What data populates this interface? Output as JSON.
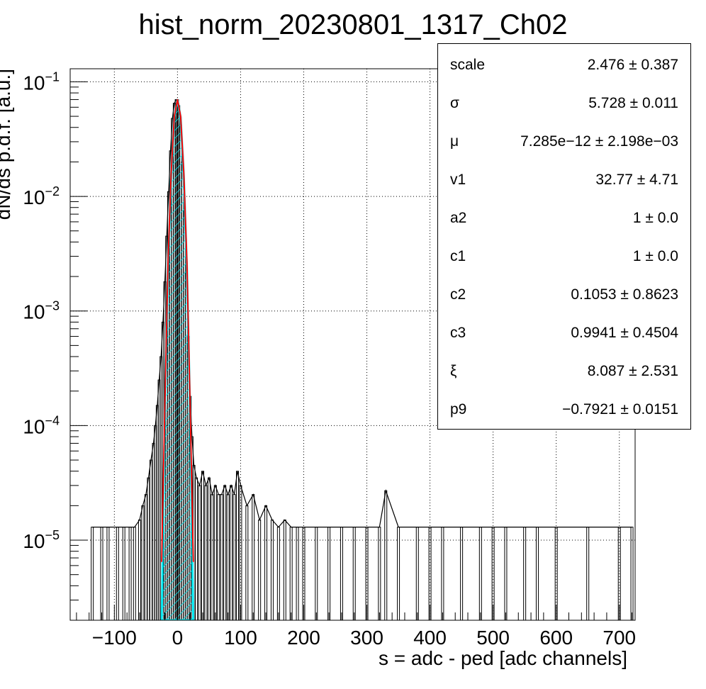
{
  "chart_data": {
    "type": "histogram",
    "title": "hist_norm_20230801_1317_Ch02",
    "xlabel": "s = adc - ped [adc channels]",
    "ylabel": "dN/ds p.d.f. [a.u.]",
    "xlim": [
      -170,
      725
    ],
    "ylim": [
      2e-06,
      0.13
    ],
    "y_scale": "log",
    "grid": true,
    "x_ticks": [
      -100,
      0,
      100,
      200,
      300,
      400,
      500,
      600,
      700
    ],
    "x_tick_labels": [
      "−100",
      "0",
      "100",
      "200",
      "300",
      "400",
      "500",
      "600",
      "700"
    ],
    "y_ticks": [
      1e-05,
      0.0001,
      0.001,
      0.01,
      0.1
    ],
    "y_tick_bases": [
      "10",
      "10",
      "10",
      "10",
      "10"
    ],
    "y_tick_exponents": [
      "−5",
      "−4",
      "−3",
      "−2",
      "−1"
    ],
    "series": [
      {
        "style": "black histogram",
        "x": [
          -135,
          -120,
          -110,
          -95,
          -85,
          -75,
          -68,
          -60,
          -55,
          -50,
          -46,
          -42,
          -38,
          -35,
          -32,
          -29,
          -26,
          -23,
          -20,
          -17,
          -14,
          -11,
          -8,
          -5,
          -2,
          0,
          2,
          5,
          8,
          11,
          14,
          17,
          20,
          23,
          26,
          30,
          35,
          40,
          45,
          50,
          55,
          60,
          65,
          70,
          75,
          80,
          85,
          90,
          95,
          100,
          110,
          120,
          130,
          140,
          150,
          160,
          170,
          180,
          190,
          200,
          220,
          240,
          260,
          280,
          300,
          320,
          330,
          350,
          380,
          400,
          420,
          450,
          480,
          500,
          520,
          550,
          570,
          600,
          650,
          700,
          720
        ],
        "y": [
          1.3e-05,
          1.3e-05,
          1.3e-05,
          1.3e-05,
          1.3e-05,
          1.3e-05,
          1.3e-05,
          1.5e-05,
          2e-05,
          2.5e-05,
          3.5e-05,
          5e-05,
          7e-05,
          0.0001,
          0.00015,
          0.00025,
          0.0004,
          0.0008,
          0.0018,
          0.0045,
          0.011,
          0.025,
          0.048,
          0.065,
          0.07,
          0.07,
          0.062,
          0.042,
          0.02,
          0.0075,
          0.0022,
          0.0006,
          0.00018,
          8e-05,
          4.5e-05,
          3.5e-05,
          3e-05,
          4e-05,
          3e-05,
          3.5e-05,
          2.5e-05,
          3e-05,
          2.5e-05,
          2.5e-05,
          3e-05,
          2.5e-05,
          3e-05,
          2.5e-05,
          4e-05,
          3e-05,
          2e-05,
          2.5e-05,
          1.5e-05,
          2e-05,
          1.5e-05,
          1.3e-05,
          1.5e-05,
          1.3e-05,
          1.3e-05,
          1.3e-05,
          1.3e-05,
          1.3e-05,
          1.3e-05,
          1.3e-05,
          1.3e-05,
          1.3e-05,
          2.7e-05,
          1.3e-05,
          1.3e-05,
          1.3e-05,
          1.3e-05,
          1.3e-05,
          1.3e-05,
          1.3e-05,
          1.3e-05,
          1.3e-05,
          1.3e-05,
          1.3e-05,
          1.3e-05,
          1.3e-05,
          1.3e-05
        ]
      },
      {
        "style": "red fit curve",
        "x": [
          -25,
          -20,
          -15,
          -10,
          -5,
          0,
          5,
          10,
          15,
          20,
          25
        ],
        "y": [
          6.5e-06,
          0.00015,
          0.0026,
          0.016,
          0.05,
          0.07,
          0.05,
          0.016,
          0.0026,
          0.00015,
          6.5e-06
        ]
      },
      {
        "style": "cyan hatched gaussian",
        "x": [
          -25,
          -20,
          -15,
          -10,
          -5,
          0,
          5,
          10,
          15,
          20,
          25
        ],
        "y": [
          2e-06,
          0.00013,
          0.0023,
          0.015,
          0.049,
          0.07,
          0.049,
          0.015,
          0.0023,
          0.00013,
          2e-06
        ]
      }
    ]
  },
  "stats": [
    {
      "name": "scale",
      "value": "2.476 ± 0.387"
    },
    {
      "name": "σ",
      "value": "5.728 ± 0.011"
    },
    {
      "name": "μ",
      "value": "7.285e−12 ± 2.198e−03"
    },
    {
      "name": "v1",
      "value": "32.77 ± 4.71"
    },
    {
      "name": "a2",
      "value": "1 ± 0.0"
    },
    {
      "name": "c1",
      "value": "1 ± 0.0"
    },
    {
      "name": "c2",
      "value": "0.1053 ± 0.8623"
    },
    {
      "name": "c3",
      "value": "0.9941 ± 0.4504"
    },
    {
      "name": "ξ",
      "value": "8.087 ± 2.531"
    },
    {
      "name": "p9",
      "value": "−0.7921 ± 0.0151"
    }
  ],
  "colors": {
    "histogram": "#000000",
    "fit": "#ff0000",
    "gaussian": "#00e5ee",
    "grid": "#000000"
  }
}
